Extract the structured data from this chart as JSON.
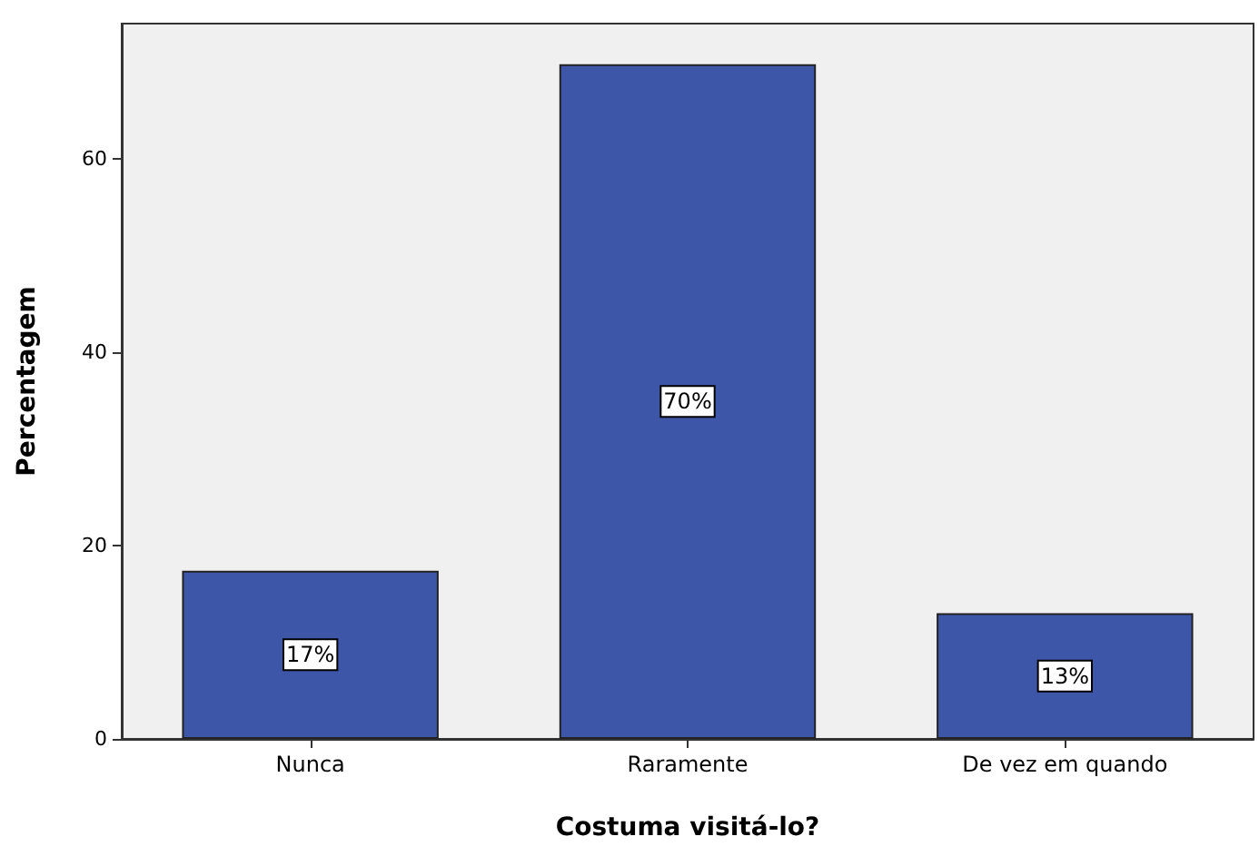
{
  "chart_data": {
    "type": "bar",
    "xlabel": "Costuma visitá-lo?",
    "ylabel": "Percentagem",
    "categories": [
      "Nunca",
      "Raramente",
      "De vez em quando"
    ],
    "values": [
      17.4,
      69.8,
      13.0
    ],
    "value_labels": [
      "17%",
      "70%",
      "13%"
    ],
    "color": "#3d56a8",
    "ylim": [
      0,
      74
    ],
    "yticks": [
      0,
      20,
      40,
      60
    ],
    "grid": false
  }
}
